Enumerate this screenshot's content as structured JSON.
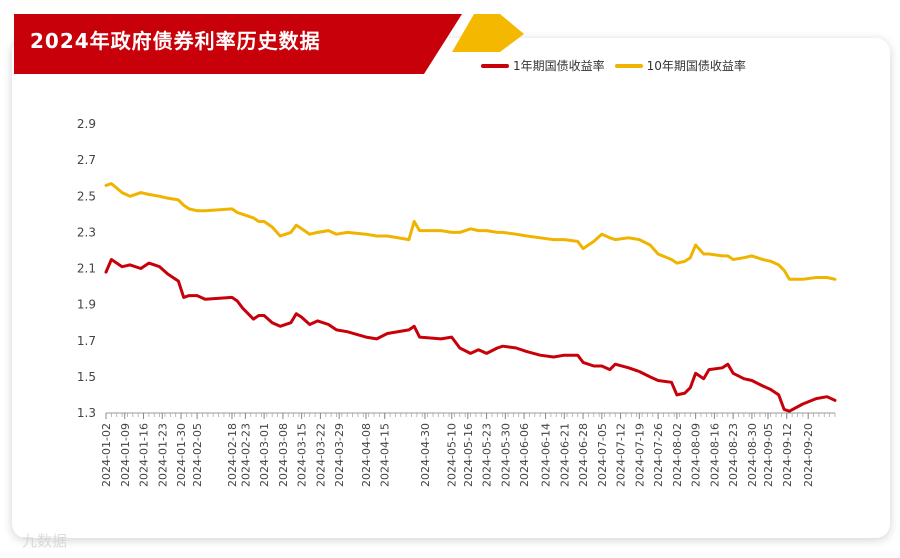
{
  "header": {
    "title": "2024年政府债券利率历史数据"
  },
  "colors": {
    "banner": "#c8000a",
    "banner_accent": "#f5b800",
    "series_1y": "#c8000a",
    "series_10y": "#f0b400"
  },
  "watermark": "九数据",
  "chart_data": {
    "type": "line",
    "title": "2024年政府债券利率历史数据",
    "xlabel": "",
    "ylabel": "",
    "ylim": [
      1.3,
      2.9
    ],
    "yticks": [
      "2.9",
      "2.7",
      "2.5",
      "2.3",
      "2.1",
      "1.9",
      "1.7",
      "1.5",
      "1.3"
    ],
    "xticks": [
      "2024-01-02",
      "2024-01-09",
      "2024-01-16",
      "2024-01-23",
      "2024-01-30",
      "2024-02-05",
      "2024-02-18",
      "2024-02-23",
      "2024-03-01",
      "2024-03-08",
      "2024-03-15",
      "2024-03-22",
      "2024-03-29",
      "2024-04-08",
      "2024-04-15",
      "2024-04-30",
      "2024-05-10",
      "2024-05-16",
      "2024-05-23",
      "2024-05-30",
      "2024-06-06",
      "2024-06-14",
      "2024-06-21",
      "2024-06-28",
      "2024-07-05",
      "2024-07-12",
      "2024-07-19",
      "2024-07-26",
      "2024-08-02",
      "2024-08-09",
      "2024-08-16",
      "2024-08-23",
      "2024-08-30",
      "2024-09-05",
      "2024-09-12",
      "2024-09-20"
    ],
    "grid": false,
    "legend_position": "top-right",
    "series": [
      {
        "name": "1年期国债收益率",
        "color": "#c8000a",
        "values": [
          [
            "2024-01-02",
            2.08
          ],
          [
            "2024-01-04",
            2.15
          ],
          [
            "2024-01-08",
            2.11
          ],
          [
            "2024-01-11",
            2.12
          ],
          [
            "2024-01-15",
            2.1
          ],
          [
            "2024-01-18",
            2.13
          ],
          [
            "2024-01-22",
            2.11
          ],
          [
            "2024-01-25",
            2.07
          ],
          [
            "2024-01-29",
            2.03
          ],
          [
            "2024-01-31",
            1.94
          ],
          [
            "2024-02-02",
            1.95
          ],
          [
            "2024-02-05",
            1.95
          ],
          [
            "2024-02-08",
            1.93
          ],
          [
            "2024-02-18",
            1.94
          ],
          [
            "2024-02-20",
            1.92
          ],
          [
            "2024-02-22",
            1.88
          ],
          [
            "2024-02-26",
            1.82
          ],
          [
            "2024-02-28",
            1.84
          ],
          [
            "2024-03-01",
            1.84
          ],
          [
            "2024-03-04",
            1.8
          ],
          [
            "2024-03-07",
            1.78
          ],
          [
            "2024-03-11",
            1.8
          ],
          [
            "2024-03-13",
            1.85
          ],
          [
            "2024-03-15",
            1.83
          ],
          [
            "2024-03-18",
            1.79
          ],
          [
            "2024-03-21",
            1.81
          ],
          [
            "2024-03-25",
            1.79
          ],
          [
            "2024-03-28",
            1.76
          ],
          [
            "2024-04-01",
            1.75
          ],
          [
            "2024-04-08",
            1.72
          ],
          [
            "2024-04-12",
            1.71
          ],
          [
            "2024-04-16",
            1.74
          ],
          [
            "2024-04-24",
            1.76
          ],
          [
            "2024-04-26",
            1.78
          ],
          [
            "2024-04-28",
            1.72
          ],
          [
            "2024-05-06",
            1.71
          ],
          [
            "2024-05-10",
            1.72
          ],
          [
            "2024-05-13",
            1.66
          ],
          [
            "2024-05-17",
            1.63
          ],
          [
            "2024-05-20",
            1.65
          ],
          [
            "2024-05-23",
            1.63
          ],
          [
            "2024-05-27",
            1.66
          ],
          [
            "2024-05-29",
            1.67
          ],
          [
            "2024-06-03",
            1.66
          ],
          [
            "2024-06-07",
            1.64
          ],
          [
            "2024-06-12",
            1.62
          ],
          [
            "2024-06-17",
            1.61
          ],
          [
            "2024-06-21",
            1.62
          ],
          [
            "2024-06-26",
            1.62
          ],
          [
            "2024-06-28",
            1.58
          ],
          [
            "2024-07-02",
            1.56
          ],
          [
            "2024-07-05",
            1.56
          ],
          [
            "2024-07-08",
            1.54
          ],
          [
            "2024-07-10",
            1.57
          ],
          [
            "2024-07-15",
            1.55
          ],
          [
            "2024-07-19",
            1.53
          ],
          [
            "2024-07-23",
            1.5
          ],
          [
            "2024-07-26",
            1.48
          ],
          [
            "2024-07-31",
            1.47
          ],
          [
            "2024-08-02",
            1.4
          ],
          [
            "2024-08-05",
            1.41
          ],
          [
            "2024-08-07",
            1.44
          ],
          [
            "2024-08-09",
            1.52
          ],
          [
            "2024-08-12",
            1.49
          ],
          [
            "2024-08-14",
            1.54
          ],
          [
            "2024-08-19",
            1.55
          ],
          [
            "2024-08-21",
            1.57
          ],
          [
            "2024-08-23",
            1.52
          ],
          [
            "2024-08-27",
            1.49
          ],
          [
            "2024-08-30",
            1.48
          ],
          [
            "2024-09-03",
            1.45
          ],
          [
            "2024-09-06",
            1.43
          ],
          [
            "2024-09-09",
            1.4
          ],
          [
            "2024-09-11",
            1.32
          ],
          [
            "2024-09-13",
            1.31
          ],
          [
            "2024-09-18",
            1.35
          ],
          [
            "2024-09-23",
            1.38
          ],
          [
            "2024-09-27",
            1.39
          ],
          [
            "2024-09-30",
            1.37
          ]
        ]
      },
      {
        "name": "10年期国债收益率",
        "color": "#f0b400",
        "values": [
          [
            "2024-01-02",
            2.56
          ],
          [
            "2024-01-04",
            2.57
          ],
          [
            "2024-01-08",
            2.52
          ],
          [
            "2024-01-11",
            2.5
          ],
          [
            "2024-01-15",
            2.52
          ],
          [
            "2024-01-18",
            2.51
          ],
          [
            "2024-01-22",
            2.5
          ],
          [
            "2024-01-25",
            2.49
          ],
          [
            "2024-01-29",
            2.48
          ],
          [
            "2024-01-31",
            2.45
          ],
          [
            "2024-02-02",
            2.43
          ],
          [
            "2024-02-05",
            2.42
          ],
          [
            "2024-02-08",
            2.42
          ],
          [
            "2024-02-18",
            2.43
          ],
          [
            "2024-02-20",
            2.41
          ],
          [
            "2024-02-22",
            2.4
          ],
          [
            "2024-02-26",
            2.38
          ],
          [
            "2024-02-28",
            2.36
          ],
          [
            "2024-03-01",
            2.36
          ],
          [
            "2024-03-04",
            2.33
          ],
          [
            "2024-03-07",
            2.28
          ],
          [
            "2024-03-11",
            2.3
          ],
          [
            "2024-03-13",
            2.34
          ],
          [
            "2024-03-15",
            2.32
          ],
          [
            "2024-03-18",
            2.29
          ],
          [
            "2024-03-21",
            2.3
          ],
          [
            "2024-03-25",
            2.31
          ],
          [
            "2024-03-28",
            2.29
          ],
          [
            "2024-04-01",
            2.3
          ],
          [
            "2024-04-08",
            2.29
          ],
          [
            "2024-04-12",
            2.28
          ],
          [
            "2024-04-16",
            2.28
          ],
          [
            "2024-04-24",
            2.26
          ],
          [
            "2024-04-26",
            2.36
          ],
          [
            "2024-04-28",
            2.31
          ],
          [
            "2024-05-06",
            2.31
          ],
          [
            "2024-05-10",
            2.3
          ],
          [
            "2024-05-13",
            2.3
          ],
          [
            "2024-05-17",
            2.32
          ],
          [
            "2024-05-20",
            2.31
          ],
          [
            "2024-05-23",
            2.31
          ],
          [
            "2024-05-27",
            2.3
          ],
          [
            "2024-05-29",
            2.3
          ],
          [
            "2024-06-03",
            2.29
          ],
          [
            "2024-06-07",
            2.28
          ],
          [
            "2024-06-12",
            2.27
          ],
          [
            "2024-06-17",
            2.26
          ],
          [
            "2024-06-21",
            2.26
          ],
          [
            "2024-06-26",
            2.25
          ],
          [
            "2024-06-28",
            2.21
          ],
          [
            "2024-07-02",
            2.25
          ],
          [
            "2024-07-05",
            2.29
          ],
          [
            "2024-07-08",
            2.27
          ],
          [
            "2024-07-10",
            2.26
          ],
          [
            "2024-07-15",
            2.27
          ],
          [
            "2024-07-19",
            2.26
          ],
          [
            "2024-07-23",
            2.23
          ],
          [
            "2024-07-26",
            2.18
          ],
          [
            "2024-07-31",
            2.15
          ],
          [
            "2024-08-02",
            2.13
          ],
          [
            "2024-08-05",
            2.14
          ],
          [
            "2024-08-07",
            2.16
          ],
          [
            "2024-08-09",
            2.23
          ],
          [
            "2024-08-12",
            2.18
          ],
          [
            "2024-08-14",
            2.18
          ],
          [
            "2024-08-19",
            2.17
          ],
          [
            "2024-08-21",
            2.17
          ],
          [
            "2024-08-23",
            2.15
          ],
          [
            "2024-08-27",
            2.16
          ],
          [
            "2024-08-30",
            2.17
          ],
          [
            "2024-09-03",
            2.15
          ],
          [
            "2024-09-06",
            2.14
          ],
          [
            "2024-09-09",
            2.12
          ],
          [
            "2024-09-11",
            2.09
          ],
          [
            "2024-09-13",
            2.04
          ],
          [
            "2024-09-18",
            2.04
          ],
          [
            "2024-09-23",
            2.05
          ],
          [
            "2024-09-27",
            2.05
          ],
          [
            "2024-09-30",
            2.04
          ]
        ]
      }
    ]
  }
}
